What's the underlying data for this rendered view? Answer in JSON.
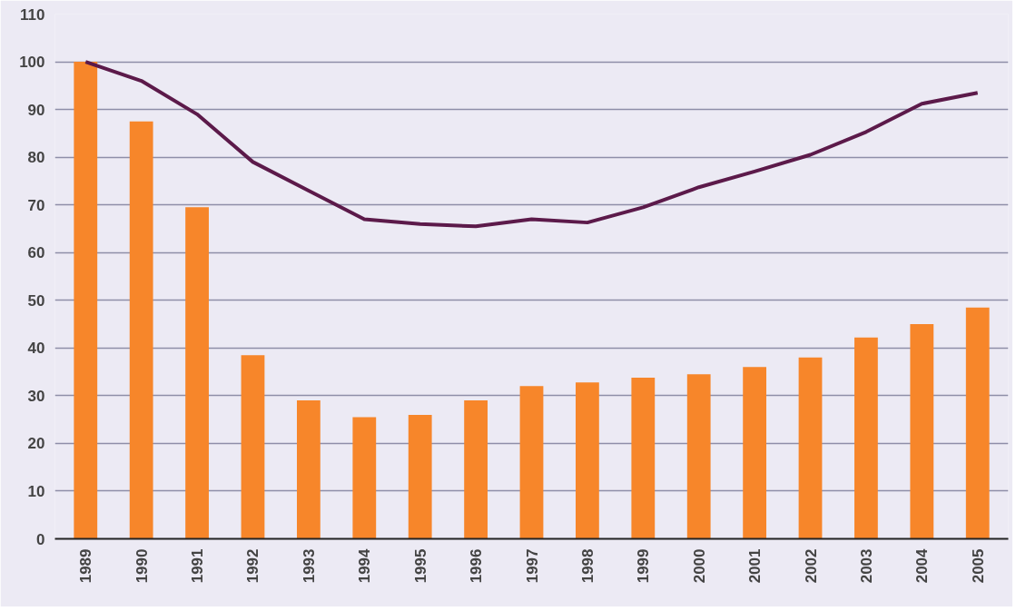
{
  "chart_data": {
    "type": "bar",
    "categories": [
      "1989",
      "1990",
      "1991",
      "1992",
      "1993",
      "1994",
      "1995",
      "1996",
      "1997",
      "1998",
      "1999",
      "2000",
      "2001",
      "2002",
      "2003",
      "2004",
      "2005"
    ],
    "series": [
      {
        "color": "#f7862a",
        "values": [
          100,
          87.5,
          69.5,
          38.5,
          29,
          25.5,
          26,
          29,
          32,
          32.8,
          33.8,
          34.5,
          36,
          38,
          42.2,
          45,
          48.5
        ]
      },
      {
        "type": "line",
        "color": "#5c1a4a",
        "values": [
          100,
          96,
          89,
          79,
          73,
          67,
          66,
          65.5,
          67,
          66.3,
          69.5,
          73.7,
          77,
          80.5,
          85.3,
          91.2,
          93.5
        ]
      }
    ],
    "ylim": [
      0,
      110
    ],
    "yticks": [
      0,
      10,
      20,
      30,
      40,
      50,
      60,
      70,
      80,
      90,
      100,
      110
    ],
    "grid": "y",
    "marker": "none",
    "line_style": "solid"
  }
}
